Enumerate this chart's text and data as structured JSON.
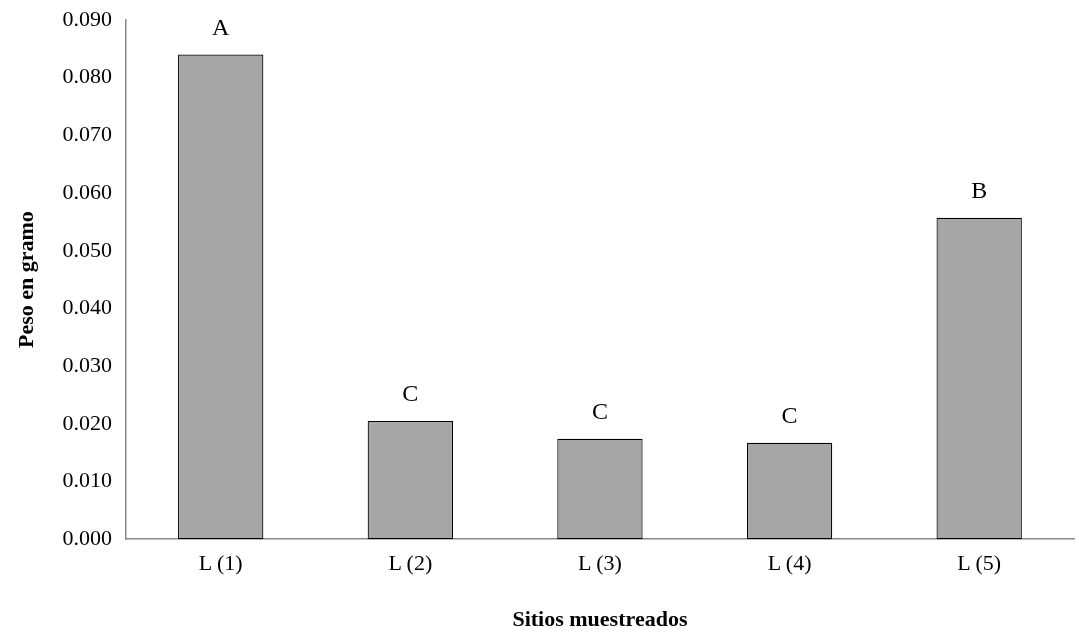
{
  "chart_data": {
    "type": "bar",
    "xlabel": "Sitios muestreados",
    "ylabel": "Peso en gramo",
    "categories": [
      "L (1)",
      "L (2)",
      "L (3)",
      "L (4)",
      "L (5)"
    ],
    "values": [
      0.084,
      0.0205,
      0.0174,
      0.0167,
      0.0557
    ],
    "color": "#a6a6a6",
    "ylim": [
      0,
      0.09
    ],
    "yticks": [
      {
        "value": 0,
        "label": "0.000"
      },
      {
        "value": 0.01,
        "label": "0.010"
      },
      {
        "value": 0.02,
        "label": "0.020"
      },
      {
        "value": 0.03,
        "label": "0.030"
      },
      {
        "value": 0.04,
        "label": "0.040"
      },
      {
        "value": 0.05,
        "label": "0.050"
      },
      {
        "value": 0.06,
        "label": "0.060"
      },
      {
        "value": 0.07,
        "label": "0.070"
      },
      {
        "value": 0.08,
        "label": "0.080"
      },
      {
        "value": 0.09,
        "label": "0.090"
      }
    ],
    "grid": false,
    "legend": false,
    "annotations": [
      {
        "text": "A",
        "x": "L (1)",
        "y": 0.084
      },
      {
        "text": "C",
        "x": "L (2)",
        "y": 0.0205
      },
      {
        "text": "C",
        "x": "L (3)",
        "y": 0.0174
      },
      {
        "text": "C",
        "x": "L (4)",
        "y": 0.0167
      },
      {
        "text": "B",
        "x": "L (5)",
        "y": 0.0557
      }
    ]
  }
}
